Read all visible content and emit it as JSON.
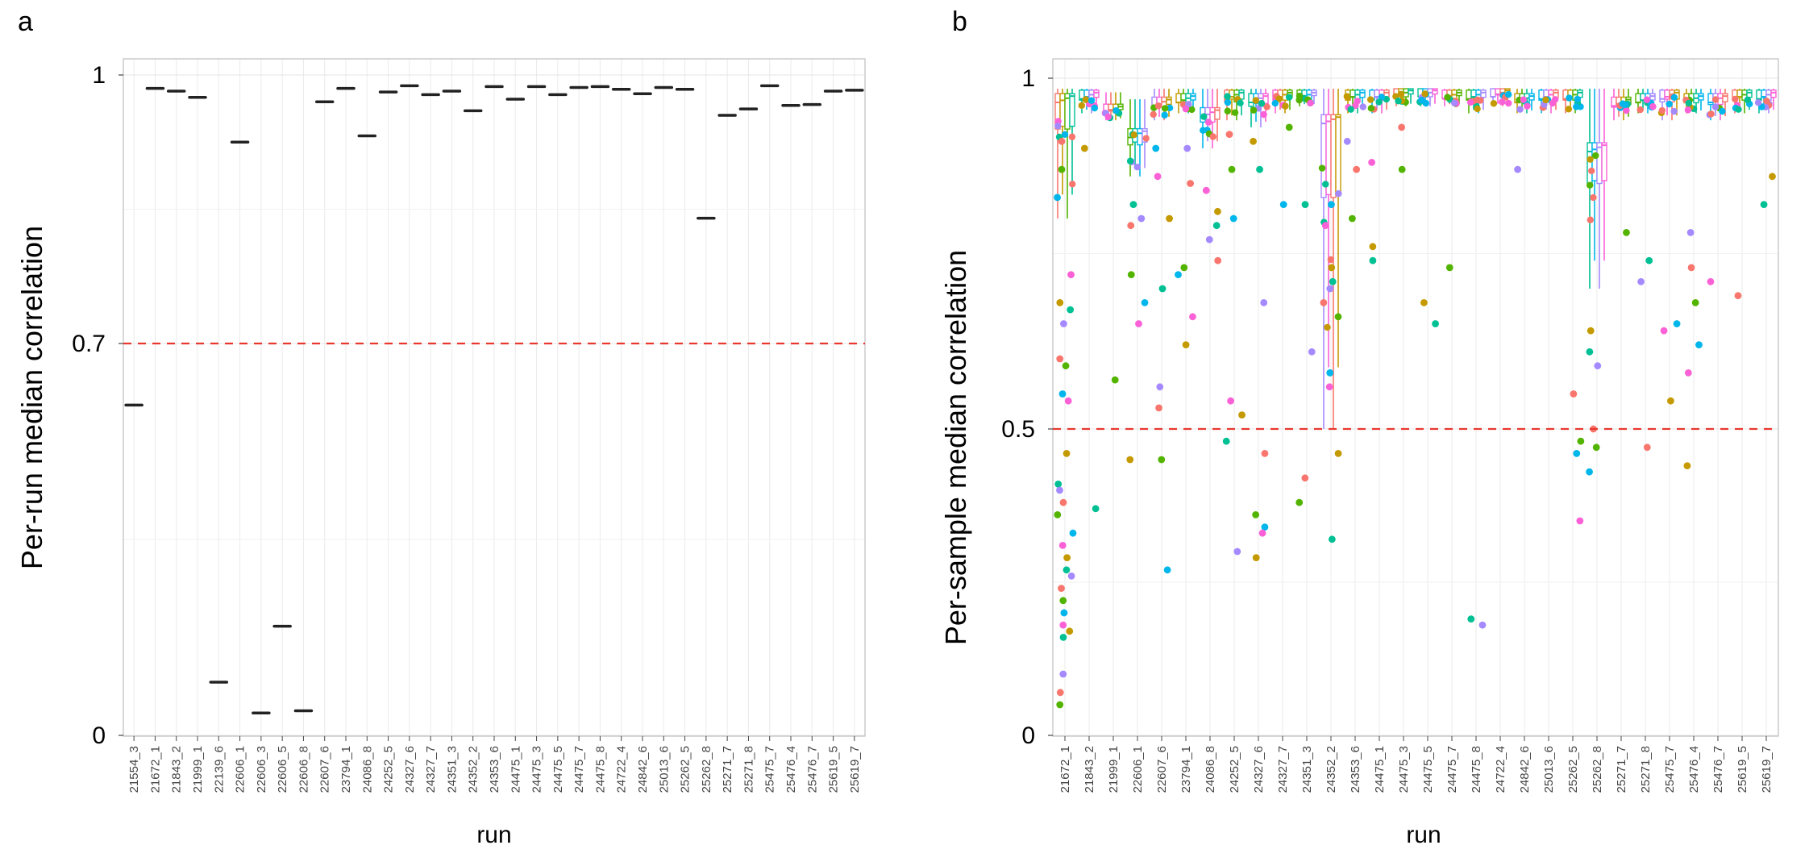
{
  "chart_data": [
    {
      "panel": "a",
      "type": "box",
      "xlabel": "run",
      "ylabel": "Per-run median correlation",
      "ylim": [
        0,
        1
      ],
      "yscale": "custom (upper range expanded)",
      "yticks": [
        "0",
        "0.7",
        "1"
      ],
      "threshold": 0.7,
      "threshold_color": "#e8382f",
      "grid": true,
      "categories": [
        "21554_3",
        "21672_1",
        "21843_2",
        "21999_1",
        "22139_6",
        "22606_1",
        "22606_3",
        "22606_5",
        "22606_8",
        "22607_6",
        "23794_1",
        "24086_8",
        "24252_5",
        "24327_6",
        "24327_7",
        "24351_3",
        "24352_2",
        "24353_6",
        "24475_1",
        "24475_3",
        "24475_5",
        "24475_7",
        "24475_8",
        "24722_4",
        "24842_6",
        "25013_6",
        "25262_5",
        "25262_8",
        "25271_7",
        "25271_8",
        "25475_7",
        "25476_4",
        "25476_7",
        "25619_5",
        "25619_7"
      ],
      "values": [
        0.59,
        0.985,
        0.982,
        0.975,
        0.095,
        0.925,
        0.04,
        0.195,
        0.044,
        0.97,
        0.985,
        0.932,
        0.981,
        0.988,
        0.978,
        0.982,
        0.96,
        0.987,
        0.973,
        0.987,
        0.978,
        0.986,
        0.987,
        0.984,
        0.979,
        0.986,
        0.984,
        0.84,
        0.955,
        0.962,
        0.988,
        0.966,
        0.967,
        0.982,
        0.983
      ]
    },
    {
      "panel": "b",
      "type": "box+jitter",
      "xlabel": "run",
      "ylabel": "Per-sample median correlation",
      "ylim": [
        0,
        1
      ],
      "yscale": "custom (upper range expanded)",
      "yticks": [
        "0",
        "0.5",
        "1"
      ],
      "threshold": 0.5,
      "threshold_color": "#e8382f",
      "grid": true,
      "categories": [
        "21672_1",
        "21843_2",
        "21999_1",
        "22606_1",
        "22607_6",
        "23794_1",
        "24086_8",
        "24252_5",
        "24327_6",
        "24327_7",
        "24351_3",
        "24352_2",
        "24353_6",
        "24475_1",
        "24475_3",
        "24475_5",
        "24475_7",
        "24475_8",
        "24722_4",
        "24842_6",
        "25013_6",
        "25262_5",
        "25262_8",
        "25271_7",
        "25271_8",
        "25475_7",
        "25476_4",
        "25476_7",
        "25619_5",
        "25619_7"
      ],
      "palette": [
        "#f8766d",
        "#c49a00",
        "#53b400",
        "#00c094",
        "#00b6eb",
        "#a58aff",
        "#fb61d7"
      ],
      "medians": [
        0.97,
        0.975,
        0.955,
        0.92,
        0.965,
        0.97,
        0.95,
        0.975,
        0.97,
        0.975,
        0.975,
        0.94,
        0.975,
        0.975,
        0.978,
        0.978,
        0.975,
        0.975,
        0.978,
        0.97,
        0.975,
        0.975,
        0.9,
        0.965,
        0.97,
        0.975,
        0.97,
        0.97,
        0.975,
        0.975
      ],
      "whisker_low": [
        0.8,
        0.95,
        0.94,
        0.86,
        0.94,
        0.95,
        0.9,
        0.94,
        0.93,
        0.95,
        0.96,
        0.5,
        0.95,
        0.95,
        0.96,
        0.96,
        0.96,
        0.95,
        0.96,
        0.95,
        0.95,
        0.95,
        0.7,
        0.94,
        0.95,
        0.94,
        0.95,
        0.94,
        0.95,
        0.95
      ],
      "whisker_high": [
        0.985,
        0.985,
        0.98,
        0.97,
        0.985,
        0.985,
        0.985,
        0.985,
        0.985,
        0.985,
        0.985,
        0.985,
        0.985,
        0.985,
        0.985,
        0.985,
        0.985,
        0.985,
        0.985,
        0.985,
        0.985,
        0.985,
        0.985,
        0.985,
        0.985,
        0.985,
        0.985,
        0.985,
        0.985,
        0.985
      ],
      "outliers": [
        [
          0.91,
          0.87,
          0.83,
          0.72,
          0.68,
          0.67,
          0.65,
          0.6,
          0.59,
          0.55,
          0.54,
          0.46,
          0.41,
          0.4,
          0.38,
          0.36,
          0.33,
          0.31,
          0.29,
          0.27,
          0.26,
          0.24,
          0.22,
          0.2,
          0.18,
          0.17,
          0.16,
          0.1,
          0.07,
          0.05
        ],
        [
          0.9,
          0.37
        ],
        [
          0.57
        ],
        [
          0.82,
          0.8,
          0.79,
          0.72,
          0.68,
          0.65,
          0.45
        ],
        [
          0.9,
          0.86,
          0.8,
          0.7,
          0.56,
          0.53,
          0.45,
          0.27
        ],
        [
          0.9,
          0.85,
          0.73,
          0.72,
          0.66,
          0.62
        ],
        [
          0.84,
          0.81,
          0.79,
          0.77,
          0.74
        ],
        [
          0.92,
          0.87,
          0.8,
          0.54,
          0.52,
          0.48,
          0.3
        ],
        [
          0.91,
          0.87,
          0.68,
          0.46,
          0.36,
          0.34,
          0.33,
          0.29
        ],
        [
          0.93,
          0.82
        ],
        [
          0.82,
          0.61,
          0.42,
          0.38
        ],
        [
          0.82,
          0.79,
          0.73,
          0.71,
          0.7,
          0.68,
          0.66,
          0.58,
          0.56,
          0.46,
          0.32
        ],
        [
          0.91,
          0.87,
          0.8
        ],
        [
          0.88,
          0.76,
          0.74
        ],
        [
          0.93,
          0.87
        ],
        [
          0.68,
          0.65
        ],
        [
          0.73
        ],
        [
          0.19,
          0.18
        ],
        [],
        [
          0.87
        ],
        [],
        [
          0.55,
          0.48,
          0.46,
          0.35
        ],
        [
          0.64,
          0.61,
          0.59,
          0.5,
          0.47,
          0.43
        ],
        [
          0.78
        ],
        [
          0.74,
          0.71,
          0.47
        ],
        [
          0.65,
          0.64,
          0.54
        ],
        [
          0.78,
          0.73,
          0.68,
          0.62,
          0.58,
          0.44
        ],
        [
          0.71
        ],
        [
          0.69
        ],
        [
          0.86,
          0.82
        ]
      ]
    }
  ],
  "panels": {
    "a": {
      "letter": "a",
      "xlabel": "run",
      "ylabel": "Per-run median correlation"
    },
    "b": {
      "letter": "b",
      "xlabel": "run",
      "ylabel": "Per-sample median correlation"
    }
  }
}
